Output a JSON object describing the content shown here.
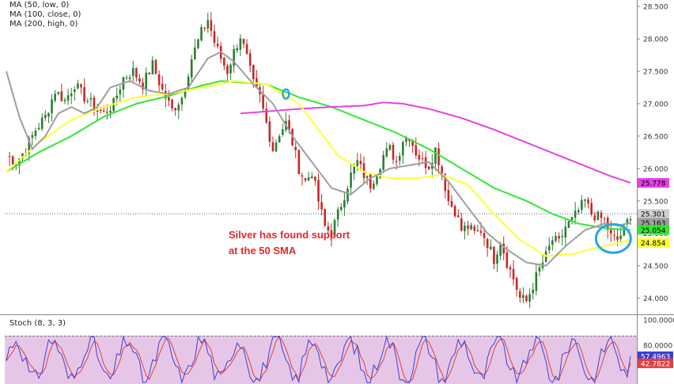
{
  "legend": {
    "ma50": "MA (50, low, 0)",
    "ma100": "MA (100, close, 0)",
    "ma200": "MA (200, high, 0)"
  },
  "annotation": {
    "line1": "Silver has found support",
    "line2": "at the 50 SMA"
  },
  "stoch_label": "Stoch (8, 3, 3)",
  "colors": {
    "bull": "#2e7d32",
    "bear": "#c62828",
    "ma50": "#ffff33",
    "ma100": "#9e9e9e",
    "ma200": "#33e633",
    "ma_violet": "#e640e6",
    "stoch_bg": "#e6c6e6",
    "stoch_k": "#3f3fd1",
    "stoch_d": "#e04040",
    "circle": "#2aa7de",
    "annotation": "#e8262c"
  },
  "chart_data": [
    {
      "type": "candlestick",
      "title": "",
      "y_ticks": [
        "24.000",
        "24.500",
        "25.000",
        "25.500",
        "26.000",
        "26.500",
        "27.000",
        "27.500",
        "28.000",
        "28.500"
      ],
      "ylim": [
        23.75,
        28.6
      ],
      "price_labels": [
        {
          "value": 25.778,
          "text": "25.778",
          "color": "#e640e6"
        },
        {
          "value": 25.301,
          "text": "25.301",
          "color": "#d0d0d0"
        },
        {
          "value": 25.163,
          "text": "25.163",
          "color": "#9e9e9e"
        },
        {
          "value": 25.054,
          "text": "25.054",
          "color": "#33e633"
        },
        {
          "value": 24.854,
          "text": "24.854",
          "color": "#ffff33"
        }
      ],
      "current_price": 25.301,
      "price_path": [
        [
          0,
          26.2
        ],
        [
          3,
          26.1
        ],
        [
          6,
          26.3
        ],
        [
          9,
          26.6
        ],
        [
          12,
          26.8
        ],
        [
          15,
          27.2
        ],
        [
          18,
          27.05
        ],
        [
          21,
          27.3
        ],
        [
          24,
          27.1
        ],
        [
          27,
          26.95
        ],
        [
          30,
          26.85
        ],
        [
          33,
          27.0
        ],
        [
          36,
          27.4
        ],
        [
          39,
          27.5
        ],
        [
          42,
          27.3
        ],
        [
          45,
          27.6
        ],
        [
          48,
          27.2
        ],
        [
          51,
          26.9
        ],
        [
          54,
          27.1
        ],
        [
          57,
          27.7
        ],
        [
          60,
          28.1
        ],
        [
          62,
          28.3
        ],
        [
          64,
          27.95
        ],
        [
          66,
          27.7
        ],
        [
          68,
          27.5
        ],
        [
          70,
          27.8
        ],
        [
          72,
          28.05
        ],
        [
          74,
          27.7
        ],
        [
          76,
          27.3
        ],
        [
          78,
          27.1
        ],
        [
          80,
          26.7
        ],
        [
          82,
          26.3
        ],
        [
          84,
          26.55
        ],
        [
          86,
          26.7
        ],
        [
          88,
          26.4
        ],
        [
          90,
          26.0
        ],
        [
          92,
          25.8
        ],
        [
          94,
          25.95
        ],
        [
          96,
          25.5
        ],
        [
          98,
          25.1
        ],
        [
          100,
          25.0
        ],
        [
          102,
          25.3
        ],
        [
          104,
          25.6
        ],
        [
          106,
          25.9
        ],
        [
          108,
          26.1
        ],
        [
          110,
          25.9
        ],
        [
          112,
          25.75
        ],
        [
          114,
          25.95
        ],
        [
          116,
          26.2
        ],
        [
          118,
          26.3
        ],
        [
          120,
          26.1
        ],
        [
          122,
          26.45
        ],
        [
          124,
          26.5
        ],
        [
          126,
          26.25
        ],
        [
          128,
          26.1
        ],
        [
          130,
          26.05
        ],
        [
          132,
          26.3
        ],
        [
          134,
          25.95
        ],
        [
          136,
          25.5
        ],
        [
          138,
          25.35
        ],
        [
          140,
          25.05
        ],
        [
          142,
          25.1
        ],
        [
          144,
          25.0
        ],
        [
          146,
          25.05
        ],
        [
          148,
          24.85
        ],
        [
          150,
          24.6
        ],
        [
          152,
          24.9
        ],
        [
          154,
          24.55
        ],
        [
          156,
          24.3
        ],
        [
          158,
          24.0
        ],
        [
          160,
          23.95
        ],
        [
          162,
          24.2
        ],
        [
          164,
          24.45
        ],
        [
          166,
          24.65
        ],
        [
          168,
          24.9
        ],
        [
          170,
          24.85
        ],
        [
          172,
          25.1
        ],
        [
          174,
          25.2
        ],
        [
          176,
          25.35
        ],
        [
          178,
          25.5
        ],
        [
          180,
          25.3
        ],
        [
          182,
          25.25
        ],
        [
          184,
          25.2
        ],
        [
          186,
          24.95
        ],
        [
          188,
          24.9
        ],
        [
          190,
          25.05
        ],
        [
          192,
          25.3
        ]
      ],
      "ma50_path": [
        [
          0,
          25.95
        ],
        [
          10,
          26.4
        ],
        [
          20,
          26.75
        ],
        [
          30,
          26.95
        ],
        [
          40,
          27.1
        ],
        [
          50,
          27.15
        ],
        [
          60,
          27.25
        ],
        [
          70,
          27.35
        ],
        [
          80,
          27.3
        ],
        [
          90,
          27.0
        ],
        [
          96,
          26.6
        ],
        [
          102,
          26.2
        ],
        [
          110,
          25.95
        ],
        [
          118,
          25.85
        ],
        [
          126,
          25.85
        ],
        [
          134,
          25.9
        ],
        [
          142,
          25.75
        ],
        [
          150,
          25.3
        ],
        [
          158,
          24.9
        ],
        [
          166,
          24.65
        ],
        [
          174,
          24.68
        ],
        [
          182,
          24.78
        ],
        [
          188,
          24.85
        ],
        [
          192,
          24.9
        ]
      ],
      "ma100_path": [
        [
          0,
          27.5
        ],
        [
          4,
          26.8
        ],
        [
          8,
          26.3
        ],
        [
          12,
          26.5
        ],
        [
          16,
          26.85
        ],
        [
          20,
          26.95
        ],
        [
          24,
          26.85
        ],
        [
          28,
          26.95
        ],
        [
          32,
          27.25
        ],
        [
          38,
          27.35
        ],
        [
          44,
          27.2
        ],
        [
          50,
          27.15
        ],
        [
          56,
          27.25
        ],
        [
          62,
          27.7
        ],
        [
          66,
          27.8
        ],
        [
          70,
          27.65
        ],
        [
          76,
          27.3
        ],
        [
          82,
          27.0
        ],
        [
          88,
          26.5
        ],
        [
          94,
          26.1
        ],
        [
          100,
          25.7
        ],
        [
          106,
          25.6
        ],
        [
          112,
          25.85
        ],
        [
          118,
          26.0
        ],
        [
          124,
          26.05
        ],
        [
          130,
          26.1
        ],
        [
          136,
          25.8
        ],
        [
          142,
          25.4
        ],
        [
          148,
          25.0
        ],
        [
          154,
          24.75
        ],
        [
          160,
          24.55
        ],
        [
          166,
          24.5
        ],
        [
          172,
          24.8
        ],
        [
          178,
          25.05
        ],
        [
          184,
          25.15
        ],
        [
          188,
          25.12
        ],
        [
          192,
          25.16
        ]
      ],
      "ma200_path": [
        [
          0,
          25.95
        ],
        [
          10,
          26.25
        ],
        [
          20,
          26.5
        ],
        [
          30,
          26.8
        ],
        [
          40,
          27.0
        ],
        [
          50,
          27.12
        ],
        [
          60,
          27.28
        ],
        [
          66,
          27.35
        ],
        [
          80,
          27.3
        ],
        [
          90,
          27.1
        ],
        [
          100,
          26.95
        ],
        [
          110,
          26.75
        ],
        [
          120,
          26.55
        ],
        [
          130,
          26.3
        ],
        [
          140,
          26.0
        ],
        [
          150,
          25.7
        ],
        [
          160,
          25.5
        ],
        [
          168,
          25.3
        ],
        [
          176,
          25.15
        ],
        [
          184,
          25.08
        ],
        [
          192,
          25.05
        ]
      ],
      "ma_violet_path": [
        [
          72,
          26.85
        ],
        [
          80,
          26.88
        ],
        [
          90,
          26.92
        ],
        [
          100,
          26.95
        ],
        [
          110,
          26.97
        ],
        [
          116,
          27.02
        ],
        [
          122,
          27.0
        ],
        [
          130,
          26.92
        ],
        [
          140,
          26.78
        ],
        [
          150,
          26.6
        ],
        [
          160,
          26.4
        ],
        [
          170,
          26.2
        ],
        [
          180,
          26.0
        ],
        [
          186,
          25.88
        ],
        [
          192,
          25.78
        ]
      ],
      "circles": [
        {
          "bar": 86,
          "value": 27.15,
          "size": "small"
        },
        {
          "bar": 186,
          "value": 24.92,
          "size": "large"
        }
      ]
    },
    {
      "type": "line",
      "title": "Stoch (8, 3, 3)",
      "y_ticks": [
        "100.0000",
        "80.0000"
      ],
      "ylim": [
        0,
        100
      ],
      "levels": [
        80,
        20
      ],
      "last_values": [
        {
          "name": "K",
          "value": 57.4963,
          "text": "57.4963"
        },
        {
          "name": "D",
          "value": 42.7822,
          "text": "42.7822"
        }
      ]
    }
  ]
}
